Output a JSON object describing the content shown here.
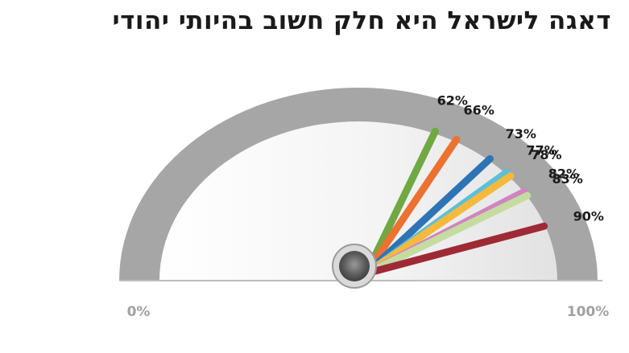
{
  "title": "דאגה לישראל היא חלק חשוב בהיותי יהודי",
  "colors": {
    "gauge_ring": "#a6a6a6",
    "gauge_face": "#f2f2f2",
    "hub": "#6b6b6b",
    "axis_label": "#a0a0a0",
    "value_label": "#1a1a1a"
  },
  "chart_data": {
    "type": "gauge",
    "title": "דאגה לישראל היא חלק חשוב בהיותי יהודי",
    "range": [
      0,
      100
    ],
    "min_label": "0%",
    "max_label": "100%",
    "needles": [
      {
        "value": 62,
        "label": "62%",
        "color": "#70a844"
      },
      {
        "value": 66,
        "label": "66%",
        "color": "#ed7131"
      },
      {
        "value": 73,
        "label": "73%",
        "color": "#2e74b5"
      },
      {
        "value": 77,
        "label": "77%",
        "color": "#5bc0d9"
      },
      {
        "value": 78,
        "label": "78%",
        "color": "#f5b93e"
      },
      {
        "value": 82,
        "label": "82%",
        "color": "#d184c0"
      },
      {
        "value": 83,
        "label": "83%",
        "color": "#c5dca0"
      },
      {
        "value": 90,
        "label": "90%",
        "color": "#9e2a35"
      }
    ]
  }
}
